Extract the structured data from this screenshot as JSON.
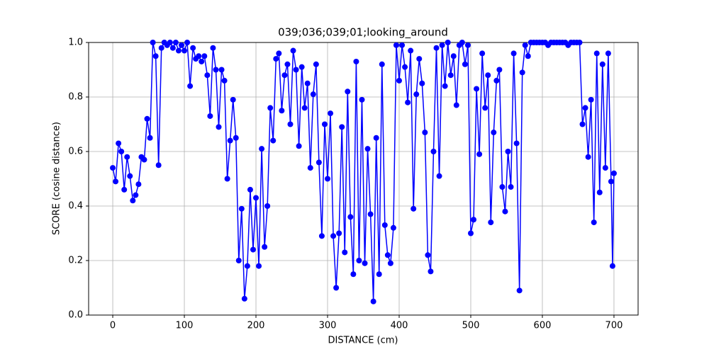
{
  "chart_data": {
    "type": "line",
    "title": "039;036;039;01;looking_around",
    "xlabel": "DISTANCE (cm)",
    "ylabel": "SCORE (cosine distance)",
    "x": [
      0,
      4,
      8,
      12,
      16,
      20,
      24,
      28,
      32,
      36,
      40,
      44,
      48,
      52,
      56,
      60,
      64,
      68,
      72,
      76,
      80,
      84,
      88,
      92,
      96,
      100,
      104,
      108,
      112,
      116,
      120,
      124,
      128,
      132,
      136,
      140,
      144,
      148,
      152,
      156,
      160,
      164,
      168,
      172,
      176,
      180,
      184,
      188,
      192,
      196,
      200,
      204,
      208,
      212,
      216,
      220,
      224,
      228,
      232,
      236,
      240,
      244,
      248,
      252,
      256,
      260,
      264,
      268,
      272,
      276,
      280,
      284,
      288,
      292,
      296,
      300,
      304,
      308,
      312,
      316,
      320,
      324,
      328,
      332,
      336,
      340,
      344,
      348,
      352,
      356,
      360,
      364,
      368,
      372,
      376,
      380,
      384,
      388,
      392,
      396,
      400,
      404,
      408,
      412,
      416,
      420,
      424,
      428,
      432,
      436,
      440,
      444,
      448,
      452,
      456,
      460,
      464,
      468,
      472,
      476,
      480,
      484,
      488,
      492,
      496,
      500,
      504,
      508,
      512,
      516,
      520,
      524,
      528,
      532,
      536,
      540,
      544,
      548,
      552,
      556,
      560,
      564,
      568,
      572,
      576,
      580,
      584,
      588,
      592,
      596,
      600,
      604,
      608,
      612,
      616,
      620,
      624,
      628,
      632,
      636,
      640,
      644,
      648,
      652,
      656,
      660,
      664,
      668,
      672,
      676,
      680,
      684,
      688,
      692,
      696,
      698,
      700
    ],
    "series": [
      {
        "color": "#0000ff",
        "values": [
          0.54,
          0.49,
          0.63,
          0.6,
          0.46,
          0.58,
          0.51,
          0.42,
          0.44,
          0.48,
          0.58,
          0.57,
          0.72,
          0.65,
          1.0,
          0.95,
          0.55,
          0.98,
          1.0,
          0.99,
          1.0,
          0.98,
          1.0,
          0.97,
          0.99,
          0.97,
          1.0,
          0.84,
          0.98,
          0.94,
          0.95,
          0.93,
          0.95,
          0.88,
          0.73,
          0.98,
          0.9,
          0.69,
          0.9,
          0.86,
          0.5,
          0.64,
          0.79,
          0.65,
          0.2,
          0.39,
          0.06,
          0.18,
          0.46,
          0.24,
          0.43,
          0.18,
          0.61,
          0.25,
          0.4,
          0.76,
          0.64,
          0.94,
          0.96,
          0.75,
          0.88,
          0.92,
          0.7,
          0.97,
          0.9,
          0.62,
          0.91,
          0.76,
          0.85,
          0.54,
          0.81,
          0.92,
          0.56,
          0.29,
          0.7,
          0.5,
          0.74,
          0.29,
          0.1,
          0.3,
          0.69,
          0.23,
          0.82,
          0.36,
          0.15,
          0.93,
          0.2,
          0.79,
          0.19,
          0.61,
          0.37,
          0.05,
          0.65,
          0.15,
          0.92,
          0.33,
          0.22,
          0.19,
          0.32,
          0.99,
          0.86,
          0.99,
          0.91,
          0.78,
          0.97,
          0.39,
          0.81,
          0.94,
          0.85,
          0.67,
          0.22,
          0.16,
          0.6,
          0.98,
          0.51,
          0.99,
          0.84,
          1.0,
          0.88,
          0.95,
          0.77,
          0.99,
          1.0,
          0.92,
          0.99,
          0.3,
          0.35,
          0.83,
          0.59,
          0.96,
          0.76,
          0.88,
          0.34,
          0.67,
          0.86,
          0.9,
          0.47,
          0.38,
          0.6,
          0.47,
          0.96,
          0.63,
          0.09,
          0.89,
          0.99,
          0.95,
          1.0,
          1.0,
          1.0,
          1.0,
          1.0,
          1.0,
          0.99,
          1.0,
          1.0,
          1.0,
          1.0,
          1.0,
          1.0,
          0.99,
          1.0,
          1.0,
          1.0,
          1.0,
          0.7,
          0.76,
          0.58,
          0.79,
          0.34,
          0.96,
          0.45,
          0.92,
          0.54,
          0.96,
          0.49,
          0.18,
          0.52
        ]
      }
    ],
    "xlim": [
      -33.7,
      733.7
    ],
    "xticks": [
      0,
      100,
      200,
      300,
      400,
      500,
      600,
      700
    ],
    "ylim": [
      0,
      1
    ],
    "yticks": [
      {
        "value": 0,
        "label": "0.0"
      },
      0.2,
      0.4,
      0.6,
      0.8,
      {
        "value": 1,
        "label": "1.0"
      }
    ],
    "grid": true
  }
}
